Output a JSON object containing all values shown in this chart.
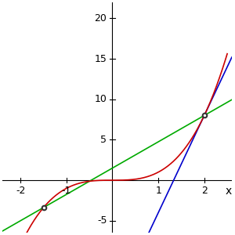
{
  "curve_color": "#cc0000",
  "tangent_color": "#0000cc",
  "secant_color": "#00aa00",
  "bg_color": "#ffffff",
  "xlim": [
    -2.4,
    2.6
  ],
  "ylim": [
    -6.5,
    22
  ],
  "xticks": [
    -2,
    -1,
    1,
    2
  ],
  "yticks": [
    -5,
    5,
    10,
    15,
    20
  ],
  "dot_color": "#333333",
  "tangent_x": 2.0,
  "secant_x2": -1.5
}
